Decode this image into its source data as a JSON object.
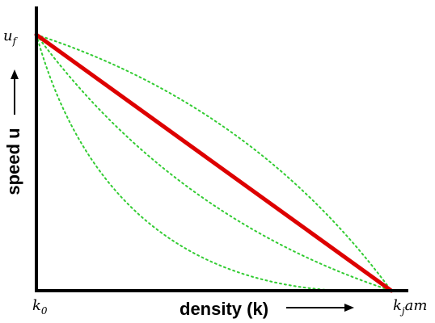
{
  "chart_data": {
    "type": "line",
    "title": "",
    "xlabel": "density (k)",
    "ylabel": "speed u",
    "x_start_label": "k",
    "x_start_sub": "0",
    "x_end_label": "k",
    "x_end_sub": "j",
    "x_end_suffix": "am",
    "y_top_label": "u",
    "y_top_sub": "f",
    "xlim": [
      0,
      1
    ],
    "ylim": [
      0,
      1
    ],
    "grid": false,
    "colors": {
      "main": "#dd0000",
      "alternatives": "#33cc33",
      "axes": "#000000"
    },
    "series": [
      {
        "style": "solid-thick",
        "color": "#dd0000",
        "x": [
          0,
          1
        ],
        "y": [
          1,
          0
        ]
      },
      {
        "style": "dotted",
        "color": "#33cc33",
        "shape": "concave",
        "strength": 0.16,
        "x": [
          0,
          1
        ],
        "y": [
          1,
          0
        ]
      },
      {
        "style": "dotted",
        "color": "#33cc33",
        "shape": "convex",
        "strength": 0.16,
        "x": [
          0,
          1
        ],
        "y": [
          1,
          0
        ]
      },
      {
        "style": "dotted",
        "color": "#33cc33",
        "shape": "convex",
        "strength": 0.4,
        "x": [
          0,
          1
        ],
        "y": [
          1,
          0
        ]
      }
    ]
  }
}
